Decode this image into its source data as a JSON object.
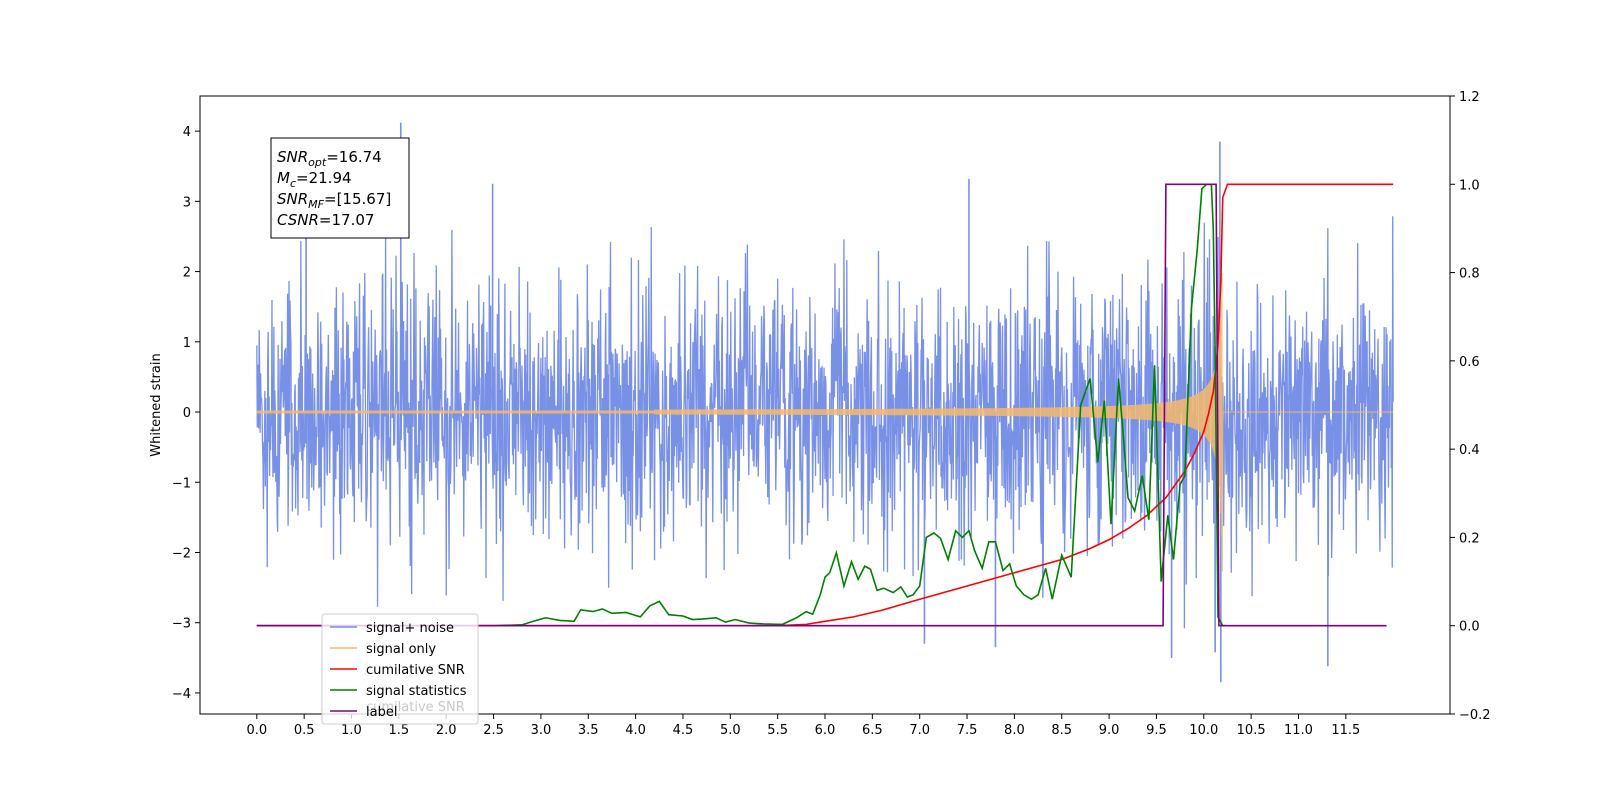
{
  "chart_data": {
    "type": "line",
    "title": "",
    "xlabel": "",
    "ylabel": "Whitened strain",
    "xlim": [
      -0.6,
      12.6
    ],
    "ylim": [
      -4.3,
      4.5
    ],
    "y2lim": [
      -0.2,
      1.2
    ],
    "x_ticks": [
      0.0,
      0.5,
      1.0,
      1.5,
      2.0,
      2.5,
      3.0,
      3.5,
      4.0,
      4.5,
      5.0,
      5.5,
      6.0,
      6.5,
      7.0,
      7.5,
      8.0,
      8.5,
      9.0,
      9.5,
      10.0,
      10.5,
      11.0,
      11.5
    ],
    "x_tick_labels": [
      "0.0",
      "0.5",
      "1.0",
      "1.5",
      "2.0",
      "2.5",
      "3.0",
      "3.5",
      "4.0",
      "4.5",
      "5.0",
      "5.5",
      "6.0",
      "6.5",
      "7.0",
      "7.5",
      "8.0",
      "8.5",
      "9.0",
      "9.5",
      "10.0",
      "10.5",
      "11.0",
      "11.5"
    ],
    "y_ticks": [
      -4,
      -3,
      -2,
      -1,
      0,
      1,
      2,
      3,
      4
    ],
    "y_tick_labels": [
      "−4",
      "−3",
      "−2",
      "−1",
      "0",
      "1",
      "2",
      "3",
      "4"
    ],
    "y2_ticks": [
      -0.2,
      0.0,
      0.2,
      0.4,
      0.6,
      0.8,
      1.0,
      1.2
    ],
    "y2_tick_labels": [
      "−0.2",
      "0.0",
      "0.2",
      "0.4",
      "0.6",
      "0.8",
      "1.0",
      "1.2"
    ],
    "grid": false,
    "legend_placement": "lower-left",
    "annotation": {
      "lines": [
        {
          "sym": "SNR",
          "sub": "opt",
          "text": "=16.74"
        },
        {
          "sym": "M",
          "sub": "c",
          "text": "=21.94"
        },
        {
          "sym": "SNR",
          "sub": "MF",
          "text": "=[15.67]"
        },
        {
          "sym": "CSNR",
          "sub": "",
          "text": "=17.07"
        }
      ]
    },
    "series": [
      {
        "name": "signal+ noise",
        "axis": "left",
        "color": "#7891e6",
        "kind": "noise",
        "x_range": [
          0.0,
          12.0
        ],
        "std": 0.92,
        "spikes": [
          [
            1.52,
            4.12
          ],
          [
            10.17,
            3.85
          ],
          [
            10.18,
            -3.85
          ],
          [
            7.52,
            3.32
          ],
          [
            2.49,
            3.25
          ],
          [
            9.66,
            -3.5
          ],
          [
            11.31,
            -3.62
          ],
          [
            7.05,
            -3.3
          ],
          [
            7.8,
            -3.35
          ],
          [
            10.12,
            -3.42
          ],
          [
            0.52,
            2.6
          ]
        ]
      },
      {
        "name": "signal only",
        "axis": "left",
        "color": "#f5b86b",
        "kind": "chirp",
        "x_range": [
          0.0,
          12.0
        ],
        "merger_x": 10.2,
        "peak_amplitude": 2.7
      },
      {
        "name": "cumilative SNR",
        "axis": "right",
        "color": "#ff0000",
        "x": [
          0.0,
          5.5,
          5.8,
          6.0,
          6.3,
          6.6,
          7.0,
          7.5,
          8.0,
          8.5,
          8.8,
          9.0,
          9.2,
          9.4,
          9.6,
          9.8,
          9.9,
          10.0,
          10.05,
          10.1,
          10.13,
          10.15,
          10.18,
          10.2,
          10.25,
          11.5,
          12.0
        ],
        "y": [
          0.0,
          0.0,
          0.003,
          0.01,
          0.02,
          0.035,
          0.06,
          0.09,
          0.12,
          0.15,
          0.175,
          0.195,
          0.22,
          0.25,
          0.29,
          0.35,
          0.39,
          0.44,
          0.48,
          0.53,
          0.59,
          0.64,
          0.78,
          0.97,
          1.0,
          1.0,
          1.0
        ]
      },
      {
        "name": "signal statistics",
        "axis": "right",
        "color": "#008000",
        "x": [
          0.0,
          2.2,
          2.5,
          2.8,
          2.95,
          3.05,
          3.2,
          3.35,
          3.42,
          3.55,
          3.65,
          3.75,
          3.9,
          4.05,
          4.15,
          4.25,
          4.35,
          4.5,
          4.6,
          4.7,
          4.85,
          4.95,
          5.05,
          5.2,
          5.35,
          5.55,
          5.7,
          5.8,
          5.87,
          5.95,
          6.0,
          6.05,
          6.12,
          6.2,
          6.28,
          6.35,
          6.42,
          6.48,
          6.55,
          6.62,
          6.72,
          6.8,
          6.87,
          6.93,
          7.0,
          7.07,
          7.15,
          7.22,
          7.3,
          7.38,
          7.45,
          7.52,
          7.58,
          7.66,
          7.73,
          7.8,
          7.88,
          7.95,
          8.02,
          8.1,
          8.18,
          8.25,
          8.33,
          8.4,
          8.5,
          8.6,
          8.7,
          8.8,
          8.88,
          8.95,
          9.02,
          9.1,
          9.15,
          9.2,
          9.27,
          9.35,
          9.42,
          9.48,
          9.55,
          9.62,
          9.68,
          9.75,
          9.8,
          9.87,
          9.93,
          9.98,
          10.03,
          10.08,
          10.1,
          10.12,
          10.15,
          10.2,
          10.24
        ],
        "y": [
          0.0,
          0.0,
          0.0,
          0.002,
          0.012,
          0.018,
          0.012,
          0.01,
          0.036,
          0.032,
          0.038,
          0.028,
          0.03,
          0.02,
          0.045,
          0.055,
          0.025,
          0.022,
          0.014,
          0.015,
          0.018,
          0.008,
          0.014,
          0.006,
          0.004,
          0.003,
          0.018,
          0.032,
          0.026,
          0.07,
          0.11,
          0.12,
          0.165,
          0.09,
          0.145,
          0.105,
          0.135,
          0.128,
          0.08,
          0.085,
          0.075,
          0.088,
          0.065,
          0.07,
          0.09,
          0.2,
          0.21,
          0.198,
          0.15,
          0.215,
          0.2,
          0.215,
          0.17,
          0.13,
          0.19,
          0.19,
          0.125,
          0.14,
          0.09,
          0.07,
          0.06,
          0.07,
          0.13,
          0.06,
          0.16,
          0.11,
          0.5,
          0.56,
          0.37,
          0.51,
          0.23,
          0.56,
          0.43,
          0.29,
          0.26,
          0.34,
          0.24,
          0.59,
          0.1,
          0.25,
          0.15,
          0.32,
          0.34,
          0.72,
          0.85,
          0.99,
          1.0,
          1.0,
          0.9,
          0.62,
          0.02,
          0.0,
          0.0
        ]
      },
      {
        "name": "label",
        "axis": "right",
        "color": "#800080",
        "x": [
          0.0,
          9.57,
          9.6,
          10.13,
          10.16,
          11.93
        ],
        "y": [
          0.0,
          0.0,
          1.0,
          1.0,
          0.0,
          0.0
        ]
      }
    ],
    "legend_hidden_text": "cumilative SNR"
  }
}
